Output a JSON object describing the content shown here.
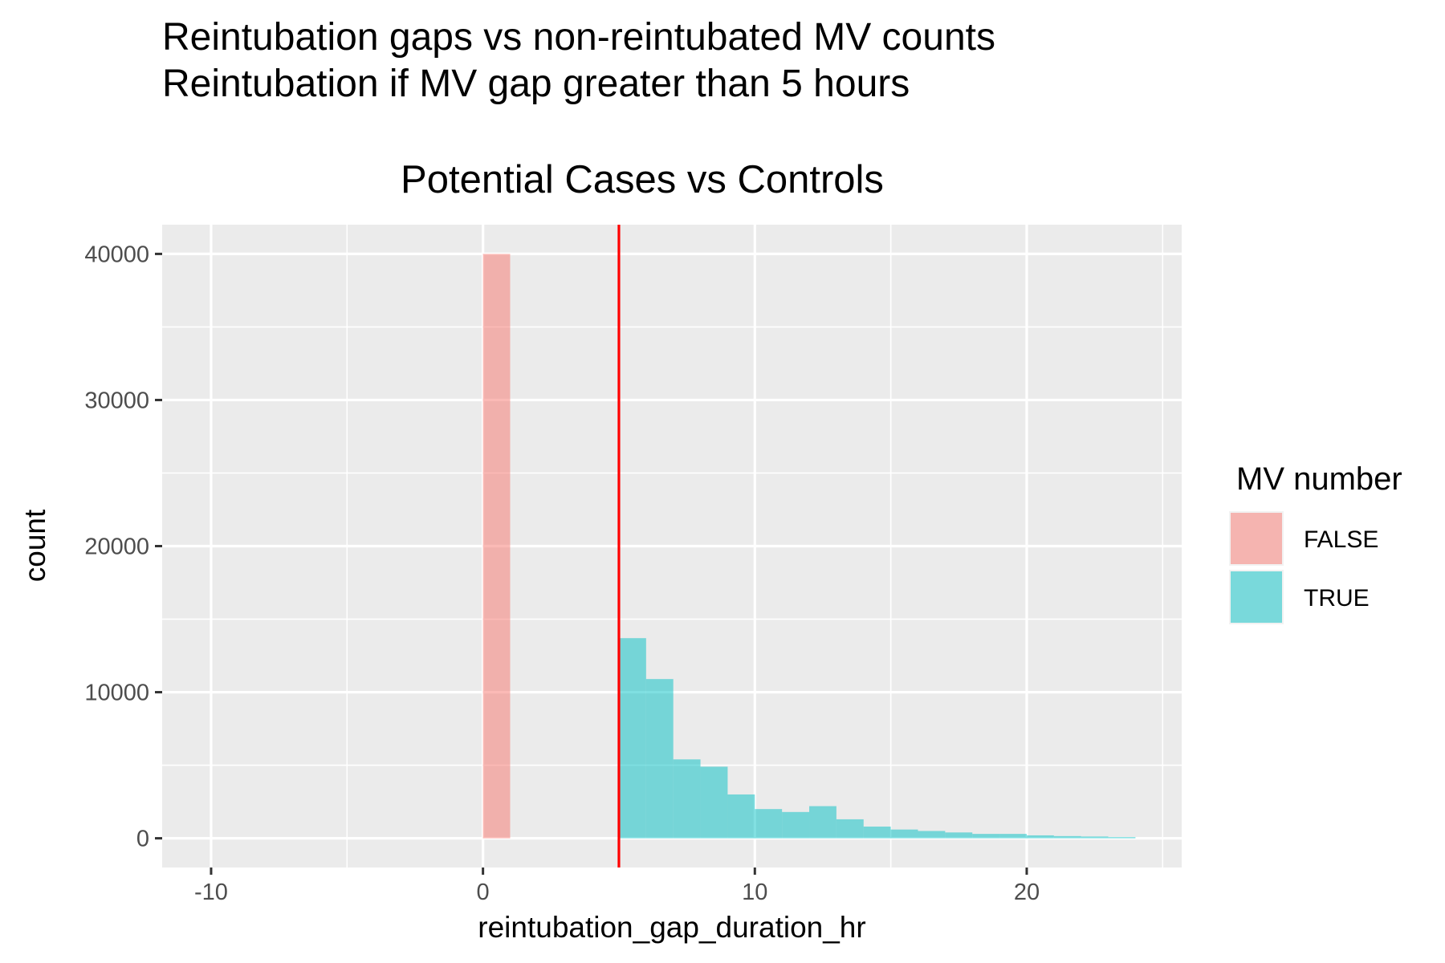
{
  "chart_data": {
    "type": "bar",
    "title_line1": "Reintubation gaps vs non-reintubated MV counts",
    "title_line2": "Reintubation if MV gap greater than 5 hours",
    "subtitle": "Potential Cases vs Controls",
    "xlabel": "reintubation_gap_duration_hr",
    "ylabel": "count",
    "xlim": [
      -11.8,
      25.7
    ],
    "ylim": [
      -2000,
      42000
    ],
    "x_ticks": [
      -10,
      0,
      10,
      20
    ],
    "x_tick_labels": [
      "-10",
      "0",
      "10",
      "20"
    ],
    "y_ticks": [
      0,
      10000,
      20000,
      30000,
      40000
    ],
    "y_tick_labels": [
      "0",
      "10000",
      "20000",
      "30000",
      "40000"
    ],
    "grid": true,
    "vline": {
      "x": 5,
      "color": "#ff0000"
    },
    "legend": {
      "title": "MV number",
      "position": "right",
      "entries": [
        {
          "label": "FALSE",
          "color": "#f8766d"
        },
        {
          "label": "TRUE",
          "color": "#00bfc4"
        }
      ]
    },
    "bin_width": 1,
    "series": [
      {
        "name": "FALSE",
        "color": "#f8766d",
        "bins": [
          {
            "x": 0.5,
            "count": 40000
          }
        ]
      },
      {
        "name": "TRUE",
        "color": "#00bfc4",
        "bins": [
          {
            "x": 5.5,
            "count": 13700
          },
          {
            "x": 6.5,
            "count": 10900
          },
          {
            "x": 7.5,
            "count": 5400
          },
          {
            "x": 8.5,
            "count": 4900
          },
          {
            "x": 9.5,
            "count": 3000
          },
          {
            "x": 10.5,
            "count": 2000
          },
          {
            "x": 11.5,
            "count": 1800
          },
          {
            "x": 12.5,
            "count": 2200
          },
          {
            "x": 13.5,
            "count": 1300
          },
          {
            "x": 14.5,
            "count": 800
          },
          {
            "x": 15.5,
            "count": 600
          },
          {
            "x": 16.5,
            "count": 500
          },
          {
            "x": 17.5,
            "count": 400
          },
          {
            "x": 18.5,
            "count": 300
          },
          {
            "x": 19.5,
            "count": 300
          },
          {
            "x": 20.5,
            "count": 200
          },
          {
            "x": 21.5,
            "count": 150
          },
          {
            "x": 22.5,
            "count": 120
          },
          {
            "x": 23.5,
            "count": 80
          }
        ]
      }
    ]
  }
}
